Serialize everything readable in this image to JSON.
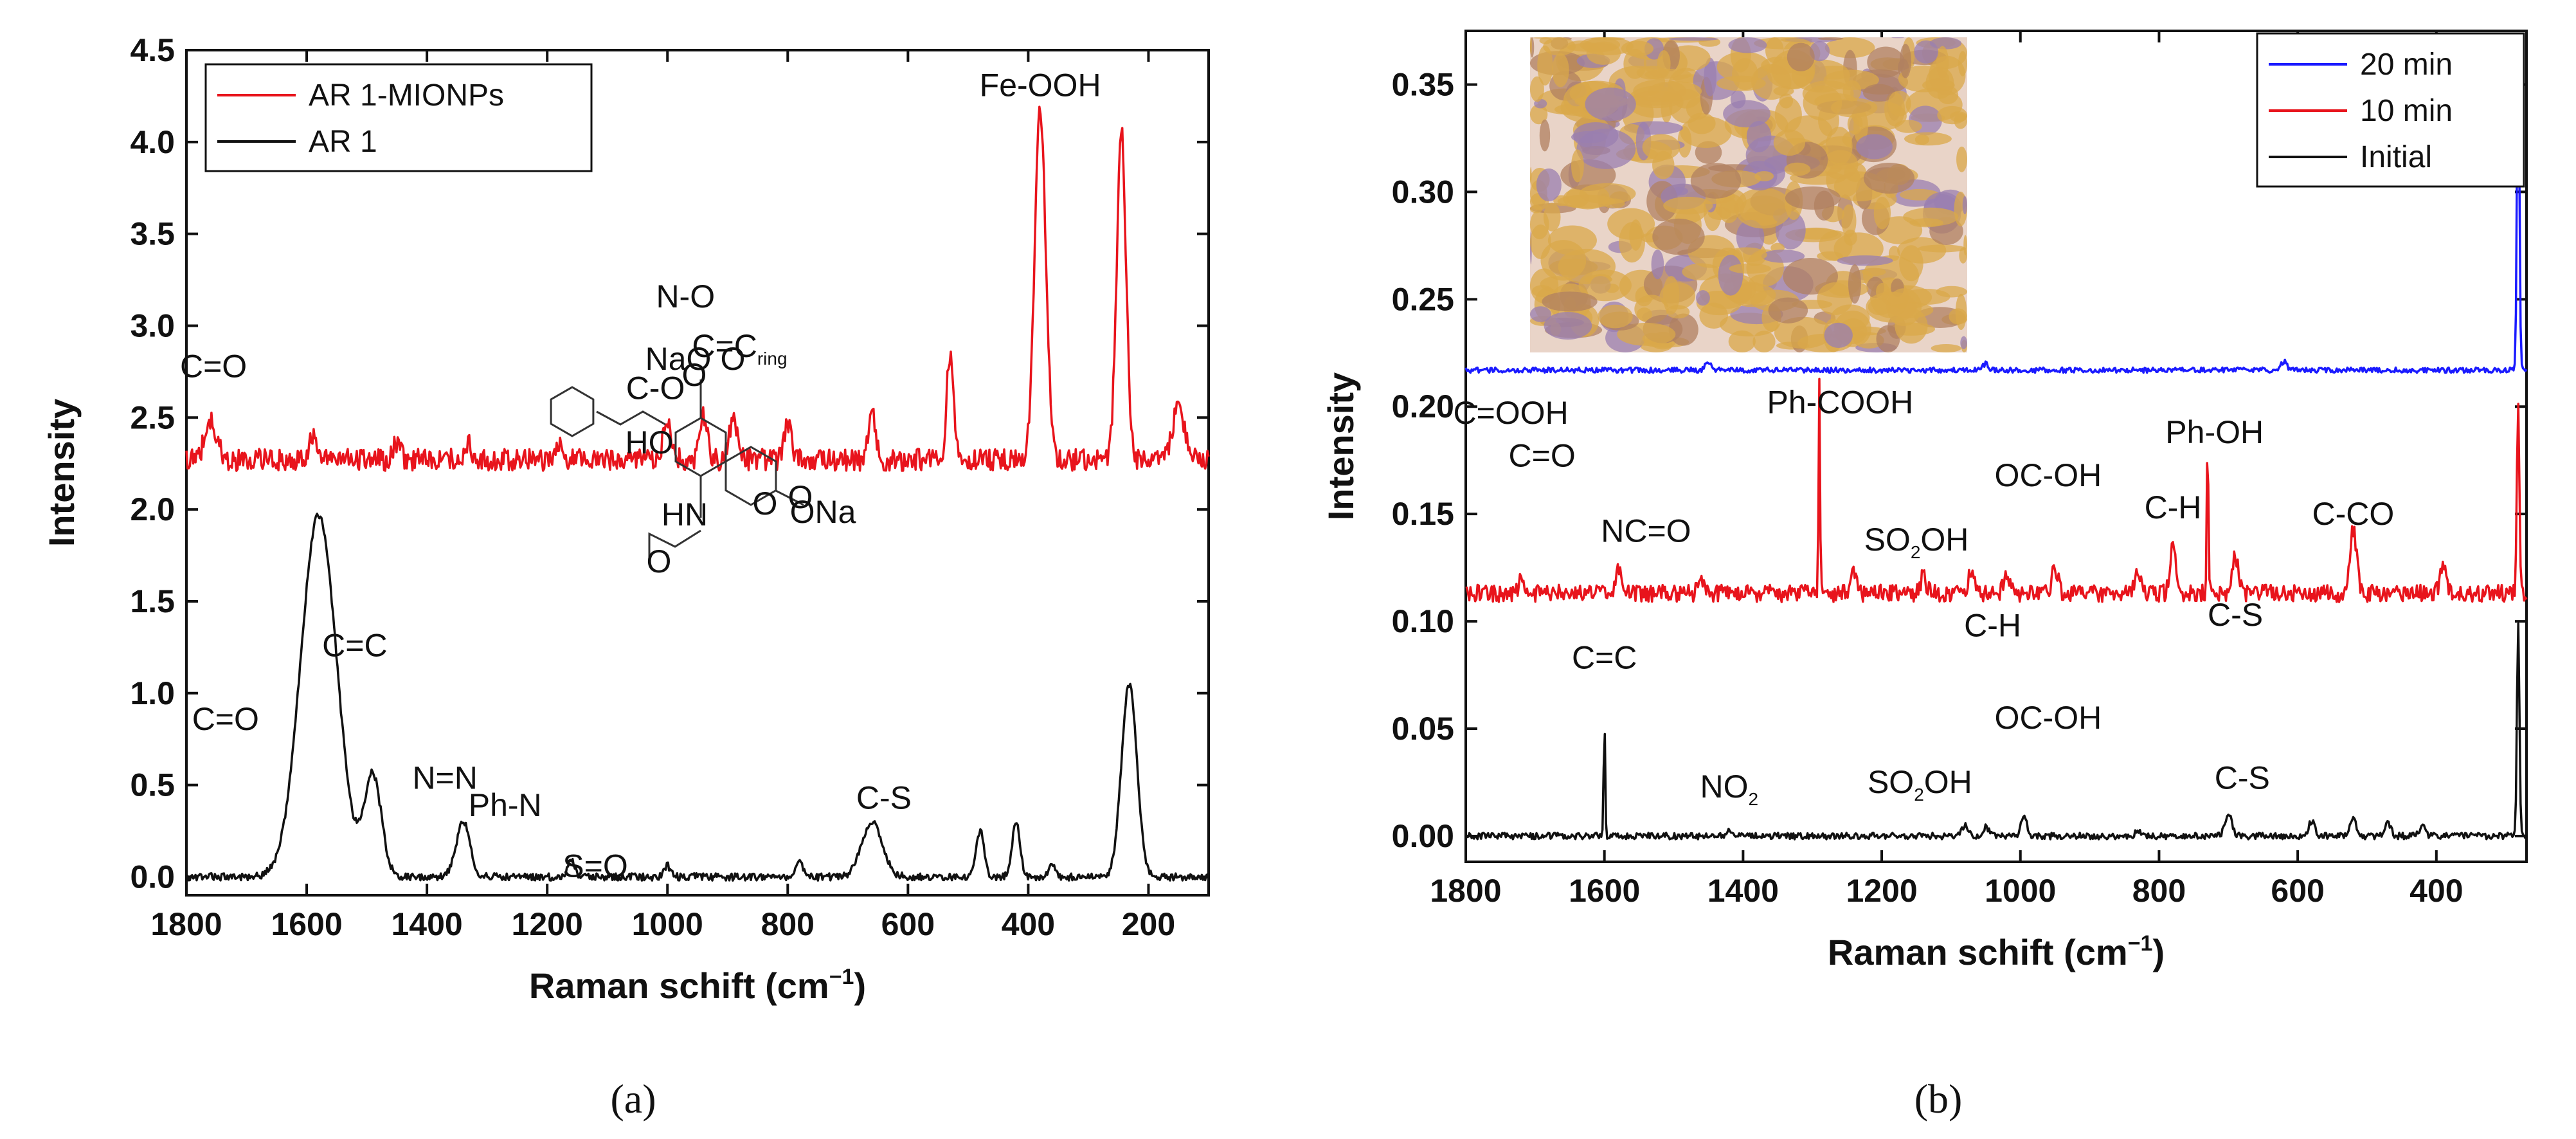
{
  "chart_data": [
    {
      "type": "line",
      "id": "a",
      "caption": "(a)",
      "xlabel": "Raman schift (cm",
      "xlabel_sup": "−1",
      "xlabel_close": ")",
      "ylabel": "Intensity",
      "xlim": [
        1800,
        100
      ],
      "ylim": [
        -0.1,
        4.5
      ],
      "xticks": [
        1800,
        1600,
        1400,
        1200,
        1000,
        800,
        600,
        400,
        200
      ],
      "yticks": [
        "0.0",
        "0.5",
        "1.0",
        "1.5",
        "2.0",
        "2.5",
        "3.0",
        "3.5",
        "4.0",
        "4.5"
      ],
      "legend_position": "top-left",
      "series": [
        {
          "name": "AR 1-MIONPs",
          "color": "#e8141c",
          "baseline": 2.27,
          "noise": 0.06,
          "peaks": [
            [
              1760,
              0.2,
              14
            ],
            [
              1590,
              0.12,
              10
            ],
            [
              1450,
              0.1,
              8
            ],
            [
              1330,
              0.08,
              8
            ],
            [
              1180,
              0.08,
              8
            ],
            [
              1000,
              0.2,
              10
            ],
            [
              940,
              0.23,
              9
            ],
            [
              890,
              0.22,
              10
            ],
            [
              800,
              0.2,
              9
            ],
            [
              660,
              0.28,
              8
            ],
            [
              530,
              0.58,
              8
            ],
            [
              380,
              1.9,
              13
            ],
            [
              245,
              1.78,
              11
            ],
            [
              150,
              0.3,
              14
            ]
          ]
        },
        {
          "name": "AR 1",
          "color": "#111111",
          "baseline": 0.0,
          "noise": 0.02,
          "peaks": [
            [
              1580,
              1.97,
              42
            ],
            [
              1490,
              0.55,
              20
            ],
            [
              1340,
              0.3,
              16
            ],
            [
              1160,
              0.1,
              8
            ],
            [
              1000,
              0.06,
              7
            ],
            [
              780,
              0.08,
              8
            ],
            [
              660,
              0.3,
              24
            ],
            [
              480,
              0.25,
              9
            ],
            [
              420,
              0.3,
              9
            ],
            [
              360,
              0.06,
              8
            ],
            [
              232,
              1.05,
              18
            ]
          ]
        }
      ],
      "annotations": [
        {
          "text": "C=O",
          "x": 1755,
          "y": 2.72
        },
        {
          "text": "N-O",
          "x": 970,
          "y": 3.1
        },
        {
          "text": "C-O",
          "x": 1020,
          "y": 2.6
        },
        {
          "text": "C=C",
          "sub": "ring",
          "x": 880,
          "y": 2.83
        },
        {
          "text": "Fe-OOH",
          "x": 380,
          "y": 4.25
        },
        {
          "text": "C=C",
          "x": 1520,
          "y": 1.2
        },
        {
          "text": "C=O",
          "x": 1735,
          "y": 0.8
        },
        {
          "text": "N=N",
          "x": 1370,
          "y": 0.48
        },
        {
          "text": "Ph-N",
          "x": 1270,
          "y": 0.33
        },
        {
          "text": "S=O",
          "x": 1120,
          "y": 0.0
        },
        {
          "text": "C-S",
          "x": 640,
          "y": 0.37
        }
      ],
      "structure_labels": [
        "NaO",
        "O",
        "O",
        "HO",
        "HN",
        "O",
        "ONa",
        "O",
        "O"
      ]
    },
    {
      "type": "line",
      "id": "b",
      "caption": "(b)",
      "xlabel": "Raman schift (cm",
      "xlabel_sup": "−1",
      "xlabel_close": ")",
      "ylabel": "Intensity",
      "xlim": [
        1800,
        270
      ],
      "ylim": [
        -0.012,
        0.375
      ],
      "xticks": [
        1800,
        1600,
        1400,
        1200,
        1000,
        800,
        600,
        400
      ],
      "yticks": [
        "0.00",
        "0.05",
        "0.10",
        "0.15",
        "0.20",
        "0.25",
        "0.30",
        "0.35"
      ],
      "legend_position": "top-right",
      "series": [
        {
          "name": "20 min",
          "color": "#1a1aff",
          "baseline": 0.217,
          "noise": 0.0012,
          "peaks": [
            [
              1450,
              0.004,
              6
            ],
            [
              1050,
              0.003,
              6
            ],
            [
              620,
              0.004,
              6
            ],
            [
              282,
              0.15,
              2.5
            ]
          ]
        },
        {
          "name": "10 min",
          "color": "#e8141c",
          "baseline": 0.113,
          "noise": 0.004,
          "peaks": [
            [
              1720,
              0.006,
              6
            ],
            [
              1580,
              0.01,
              6
            ],
            [
              1460,
              0.006,
              6
            ],
            [
              1290,
              0.098,
              1.5
            ],
            [
              1240,
              0.01,
              6
            ],
            [
              1140,
              0.008,
              6
            ],
            [
              1070,
              0.012,
              6
            ],
            [
              1020,
              0.01,
              6
            ],
            [
              950,
              0.012,
              6
            ],
            [
              830,
              0.01,
              6
            ],
            [
              780,
              0.022,
              6
            ],
            [
              730,
              0.08,
              1.5
            ],
            [
              690,
              0.018,
              6
            ],
            [
              520,
              0.03,
              7
            ],
            [
              390,
              0.014,
              6
            ],
            [
              282,
              0.09,
              2.5
            ]
          ]
        },
        {
          "name": "Initial",
          "color": "#111111",
          "baseline": 0.0,
          "noise": 0.0015,
          "peaks": [
            [
              1600,
              0.055,
              1.5
            ],
            [
              1420,
              0.003,
              6
            ],
            [
              1080,
              0.005,
              6
            ],
            [
              1050,
              0.004,
              6
            ],
            [
              995,
              0.009,
              6
            ],
            [
              830,
              0.003,
              6
            ],
            [
              700,
              0.01,
              7
            ],
            [
              580,
              0.007,
              6
            ],
            [
              520,
              0.009,
              6
            ],
            [
              470,
              0.006,
              6
            ],
            [
              420,
              0.005,
              6
            ],
            [
              282,
              0.1,
              2.5
            ]
          ]
        }
      ],
      "annotations": [
        {
          "text": "C=OOH",
          "x": 1735,
          "y": 0.192
        },
        {
          "text": "C=O",
          "x": 1690,
          "y": 0.172
        },
        {
          "text": "Ph-COOH",
          "x": 1260,
          "y": 0.197
        },
        {
          "text": "NC=O",
          "x": 1540,
          "y": 0.137
        },
        {
          "text": "SO",
          "sub": "2",
          "tail": "OH",
          "x": 1150,
          "y": 0.133
        },
        {
          "text": "OC-OH",
          "x": 960,
          "y": 0.163
        },
        {
          "text": "Ph-OH",
          "x": 720,
          "y": 0.183
        },
        {
          "text": "C-H",
          "x": 780,
          "y": 0.148
        },
        {
          "text": "C-CO",
          "x": 520,
          "y": 0.145
        },
        {
          "text": "C-H",
          "x": 1040,
          "y": 0.093
        },
        {
          "text": "C-S",
          "x": 690,
          "y": 0.098
        },
        {
          "text": "C=C",
          "x": 1600,
          "y": 0.078
        },
        {
          "text": "OC-OH",
          "x": 960,
          "y": 0.05
        },
        {
          "text": "NO",
          "sub": "2",
          "x": 1420,
          "y": 0.018
        },
        {
          "text": "SO",
          "sub": "2",
          "tail": "OH",
          "x": 1145,
          "y": 0.02
        },
        {
          "text": "C-S",
          "x": 680,
          "y": 0.022
        }
      ],
      "inset": {
        "description_color": "#d9a84a"
      }
    }
  ]
}
